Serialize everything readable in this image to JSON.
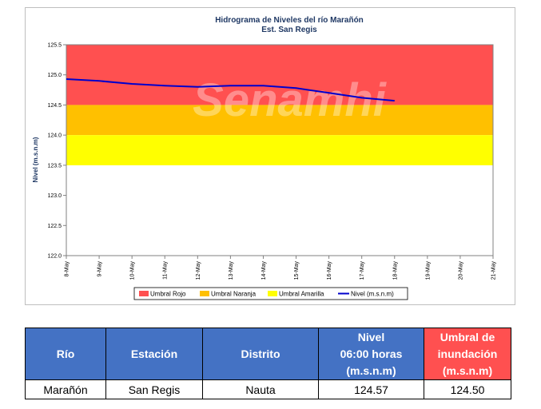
{
  "chart_data": {
    "type": "line",
    "title": "Hidrograma de Niveles del río Marañón",
    "subtitle": "Est. San Regis",
    "ylabel": "Nivel (m.s.n.m)",
    "xlabel": "",
    "ylim": [
      122.0,
      125.5
    ],
    "yticks": [
      "125.5",
      "125.0",
      "124.5",
      "124.0",
      "123.5",
      "123.0",
      "122.5",
      "122.0"
    ],
    "categories": [
      "8-May",
      "9-May",
      "10-May",
      "11-May",
      "12-May",
      "13-May",
      "14-May",
      "15-May",
      "16-May",
      "17-May",
      "18-May",
      "19-May",
      "20-May",
      "21-May"
    ],
    "watermark": "Senamhi",
    "bands": [
      {
        "name": "Umbral Rojo",
        "from": 124.5,
        "to": 125.5,
        "color": "#ff5050"
      },
      {
        "name": "Umbral Naranja",
        "from": 124.0,
        "to": 124.5,
        "color": "#ffc000"
      },
      {
        "name": "Umbral Amarilla",
        "from": 123.5,
        "to": 124.0,
        "color": "#ffff00"
      }
    ],
    "series": [
      {
        "name": "Nivel (m.s.n.m)",
        "color": "#0000cc",
        "values": [
          124.93,
          124.9,
          124.85,
          124.82,
          124.8,
          124.82,
          124.82,
          124.78,
          124.7,
          124.62,
          124.57,
          null,
          null,
          null
        ]
      }
    ],
    "grid": false,
    "legend": "bottom"
  },
  "table": {
    "headers": [
      "Río",
      "Estación",
      "Distrito",
      "Nivel\n06:00 horas\n(m.s.n.m)",
      "Umbral de\ninundación\n(m.s.n.m)"
    ],
    "row": [
      "Marañón",
      "San Regis",
      "Nauta",
      "124.57",
      "124.50"
    ]
  }
}
